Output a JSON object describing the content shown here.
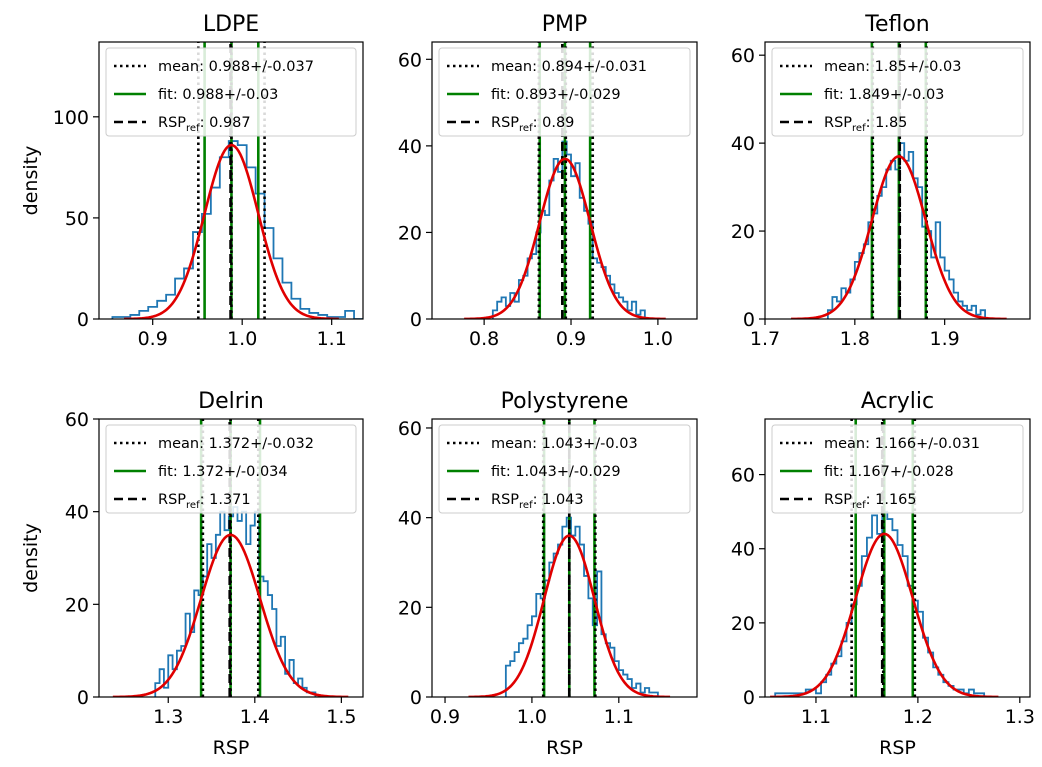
{
  "figure": {
    "ylabel": "density",
    "xlabel": "RSP"
  },
  "legend_labels": {
    "mean": "mean: ",
    "fit": "fit: ",
    "ref_main": "RSP",
    "ref_sub": "ref",
    "ref_sep": ": "
  },
  "colors": {
    "hist": "#1f77b4",
    "fit_curve": "#e00000",
    "fit_lines": "#008000",
    "mean_lines": "#000000",
    "ref_line": "#000000"
  },
  "chart_data": [
    {
      "type": "histogram",
      "title": "LDPE",
      "xlim": [
        0.84,
        1.135
      ],
      "ylim": [
        0,
        137
      ],
      "xticks": [
        0.9,
        1.0,
        1.1
      ],
      "xtick_labels": [
        "0.9",
        "1.0",
        "1.1"
      ],
      "yticks": [
        0,
        50,
        100
      ],
      "ytick_labels": [
        "0",
        "50",
        "100"
      ],
      "ylabel": "density",
      "xlabel": "",
      "mean": 0.988,
      "mean_err": 0.037,
      "mean_text": "0.988+/-0.037",
      "fit_mu": 0.988,
      "fit_sigma": 0.03,
      "fit_text": "0.988+/-0.03",
      "ref": 0.987,
      "ref_text": "0.987",
      "curve_peak": 86,
      "hist": {
        "edges": [
          0.855,
          0.865,
          0.875,
          0.885,
          0.895,
          0.905,
          0.915,
          0.925,
          0.935,
          0.945,
          0.955,
          0.965,
          0.975,
          0.985,
          0.995,
          1.005,
          1.015,
          1.025,
          1.035,
          1.045,
          1.055,
          1.065,
          1.075,
          1.085,
          1.095,
          1.105,
          1.115,
          1.125,
          1.135
        ],
        "values": [
          1,
          1,
          2,
          4,
          6,
          9,
          12,
          20,
          25,
          43,
          52,
          65,
          80,
          88,
          86,
          75,
          62,
          45,
          30,
          18,
          10,
          5,
          3,
          2,
          1,
          1,
          4,
          0
        ]
      }
    },
    {
      "type": "histogram",
      "title": "PMP",
      "xlim": [
        0.74,
        1.045
      ],
      "ylim": [
        0,
        64
      ],
      "xticks": [
        0.8,
        0.9,
        1.0
      ],
      "xtick_labels": [
        "0.8",
        "0.9",
        "1.0"
      ],
      "yticks": [
        0,
        20,
        40,
        60
      ],
      "ytick_labels": [
        "0",
        "20",
        "40",
        "60"
      ],
      "ylabel": "",
      "xlabel": "",
      "mean": 0.894,
      "mean_err": 0.031,
      "mean_text": "0.894+/-0.031",
      "fit_mu": 0.893,
      "fit_sigma": 0.029,
      "fit_text": "0.893+/-0.029",
      "ref": 0.89,
      "ref_text": "0.89",
      "curve_peak": 37,
      "hist": {
        "edges": [
          0.81,
          0.815,
          0.82,
          0.825,
          0.83,
          0.835,
          0.84,
          0.845,
          0.85,
          0.855,
          0.86,
          0.865,
          0.87,
          0.875,
          0.88,
          0.885,
          0.89,
          0.895,
          0.9,
          0.905,
          0.91,
          0.915,
          0.92,
          0.925,
          0.93,
          0.935,
          0.94,
          0.945,
          0.95,
          0.955,
          0.96,
          0.965,
          0.97,
          0.975,
          0.98,
          0.985
        ],
        "values": [
          2,
          4,
          5,
          3,
          6,
          4,
          9,
          10,
          14,
          15,
          20,
          25,
          24,
          32,
          37,
          34,
          41,
          38,
          33,
          36,
          28,
          25,
          22,
          14,
          13,
          12,
          10,
          8,
          6,
          5,
          4,
          2,
          4,
          1,
          2
        ]
      }
    },
    {
      "type": "histogram",
      "title": "Teflon",
      "xlim": [
        1.7,
        1.995
      ],
      "ylim": [
        0,
        63
      ],
      "xticks": [
        1.7,
        1.8,
        1.9
      ],
      "xtick_labels": [
        "1.7",
        "1.8",
        "1.9"
      ],
      "yticks": [
        0,
        20,
        40,
        60
      ],
      "ytick_labels": [
        "0",
        "20",
        "40",
        "60"
      ],
      "ylabel": "",
      "xlabel": "",
      "mean": 1.85,
      "mean_err": 0.03,
      "mean_text": "1.85+/-0.03",
      "fit_mu": 1.849,
      "fit_sigma": 0.03,
      "fit_text": "1.849+/-0.03",
      "ref": 1.85,
      "ref_text": "1.85",
      "curve_peak": 37,
      "hist": {
        "edges": [
          1.77,
          1.775,
          1.78,
          1.785,
          1.79,
          1.795,
          1.8,
          1.805,
          1.81,
          1.815,
          1.82,
          1.825,
          1.83,
          1.835,
          1.84,
          1.845,
          1.85,
          1.855,
          1.86,
          1.865,
          1.87,
          1.875,
          1.88,
          1.885,
          1.89,
          1.895,
          1.9,
          1.905,
          1.91,
          1.915,
          1.92,
          1.925,
          1.93,
          1.935,
          1.94,
          1.945
        ],
        "values": [
          2,
          5,
          4,
          7,
          6,
          9,
          13,
          15,
          17,
          22,
          24,
          28,
          30,
          34,
          36,
          34,
          40,
          36,
          38,
          32,
          30,
          21,
          20,
          14,
          22,
          14,
          11,
          9,
          6,
          4,
          3,
          2,
          3,
          1,
          2
        ]
      }
    },
    {
      "type": "histogram",
      "title": "Delrin",
      "xlim": [
        1.22,
        1.525
      ],
      "ylim": [
        0,
        60
      ],
      "xticks": [
        1.3,
        1.4,
        1.5
      ],
      "xtick_labels": [
        "1.3",
        "1.4",
        "1.5"
      ],
      "yticks": [
        0,
        20,
        40,
        60
      ],
      "ytick_labels": [
        "0",
        "20",
        "40",
        "60"
      ],
      "ylabel": "density",
      "xlabel": "RSP",
      "mean": 1.372,
      "mean_err": 0.032,
      "mean_text": "1.372+/-0.032",
      "fit_mu": 1.372,
      "fit_sigma": 0.034,
      "fit_text": "1.372+/-0.034",
      "ref": 1.371,
      "ref_text": "1.371",
      "curve_peak": 35,
      "hist": {
        "edges": [
          1.285,
          1.29,
          1.295,
          1.3,
          1.305,
          1.31,
          1.315,
          1.32,
          1.325,
          1.33,
          1.335,
          1.34,
          1.345,
          1.35,
          1.355,
          1.36,
          1.365,
          1.37,
          1.375,
          1.38,
          1.385,
          1.39,
          1.395,
          1.4,
          1.405,
          1.41,
          1.415,
          1.42,
          1.425,
          1.43,
          1.435,
          1.44,
          1.445,
          1.45,
          1.455,
          1.46,
          1.465,
          1.47
        ],
        "values": [
          3,
          6,
          2,
          9,
          6,
          10,
          11,
          18,
          14,
          23,
          22,
          26,
          33,
          30,
          35,
          40,
          36,
          39,
          41,
          38,
          40,
          33,
          37,
          40,
          26,
          25,
          22,
          19,
          11,
          13,
          5,
          8,
          3,
          4,
          2,
          1,
          1
        ]
      }
    },
    {
      "type": "histogram",
      "title": "Polystyrene",
      "xlim": [
        0.885,
        1.19
      ],
      "ylim": [
        0,
        62
      ],
      "xticks": [
        0.9,
        1.0,
        1.1
      ],
      "xtick_labels": [
        "0.9",
        "1.0",
        "1.1"
      ],
      "yticks": [
        0,
        20,
        40,
        60
      ],
      "ytick_labels": [
        "0",
        "20",
        "40",
        "60"
      ],
      "ylabel": "",
      "xlabel": "RSP",
      "mean": 1.043,
      "mean_err": 0.03,
      "mean_text": "1.043+/-0.03",
      "fit_mu": 1.043,
      "fit_sigma": 0.029,
      "fit_text": "1.043+/-0.029",
      "ref": 1.043,
      "ref_text": "1.043",
      "curve_peak": 36,
      "hist": {
        "edges": [
          0.97,
          0.975,
          0.98,
          0.985,
          0.99,
          0.995,
          1.0,
          1.005,
          1.01,
          1.015,
          1.02,
          1.025,
          1.03,
          1.035,
          1.04,
          1.045,
          1.05,
          1.055,
          1.06,
          1.065,
          1.07,
          1.075,
          1.08,
          1.085,
          1.09,
          1.095,
          1.1,
          1.105,
          1.11,
          1.115,
          1.12,
          1.125,
          1.13,
          1.135,
          1.14,
          1.145
        ],
        "values": [
          7,
          8,
          10,
          12,
          13,
          16,
          18,
          23,
          22,
          26,
          30,
          32,
          34,
          38,
          40,
          36,
          38,
          34,
          27,
          22,
          16,
          28,
          14,
          12,
          11,
          8,
          6,
          5,
          4,
          2,
          3,
          1,
          2,
          1,
          1
        ]
      }
    },
    {
      "type": "histogram",
      "title": "Acrylic",
      "xlim": [
        1.05,
        1.31
      ],
      "ylim": [
        0,
        75
      ],
      "xticks": [
        1.1,
        1.2,
        1.3
      ],
      "xtick_labels": [
        "1.1",
        "1.2",
        "1.3"
      ],
      "yticks": [
        0,
        20,
        40,
        60
      ],
      "ytick_labels": [
        "0",
        "20",
        "40",
        "60"
      ],
      "ylabel": "",
      "xlabel": "RSP",
      "mean": 1.166,
      "mean_err": 0.031,
      "mean_text": "1.166+/-0.031",
      "fit_mu": 1.167,
      "fit_sigma": 0.028,
      "fit_text": "1.167+/-0.028",
      "ref": 1.165,
      "ref_text": "1.165",
      "curve_peak": 44,
      "hist": {
        "edges": [
          1.06,
          1.065,
          1.07,
          1.075,
          1.08,
          1.085,
          1.09,
          1.095,
          1.1,
          1.105,
          1.11,
          1.115,
          1.12,
          1.125,
          1.13,
          1.135,
          1.14,
          1.145,
          1.15,
          1.155,
          1.16,
          1.165,
          1.17,
          1.175,
          1.18,
          1.185,
          1.19,
          1.195,
          1.2,
          1.205,
          1.21,
          1.215,
          1.22,
          1.225,
          1.23,
          1.235,
          1.24,
          1.245,
          1.25,
          1.255,
          1.26,
          1.265
        ],
        "values": [
          1,
          1,
          1,
          1,
          1,
          1,
          2,
          2,
          1,
          4,
          6,
          9,
          11,
          15,
          20,
          25,
          30,
          38,
          43,
          49,
          44,
          50,
          48,
          45,
          41,
          38,
          30,
          26,
          23,
          16,
          12,
          8,
          6,
          4,
          3,
          2,
          2,
          1,
          2,
          1,
          1
        ]
      }
    }
  ]
}
